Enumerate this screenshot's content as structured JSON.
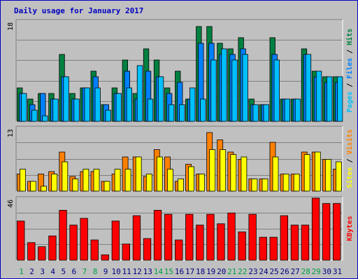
{
  "chart_data": {
    "type": "bar",
    "title": "Daily usage for January 2017",
    "categories": [
      "1",
      "2",
      "3",
      "4",
      "5",
      "6",
      "7",
      "8",
      "9",
      "10",
      "11",
      "12",
      "13",
      "14",
      "15",
      "16",
      "17",
      "18",
      "19",
      "20",
      "21",
      "22",
      "23",
      "24",
      "25",
      "26",
      "27",
      "28",
      "29",
      "30",
      "31"
    ],
    "weekend_days": [
      "1",
      "7",
      "8",
      "14",
      "15",
      "21",
      "22",
      "28",
      "29"
    ],
    "panels": [
      {
        "id": "top",
        "ymax_label": "18",
        "ymax": 18,
        "series": [
          {
            "name": "Hits",
            "color": "#008040",
            "values": [
              6,
              4,
              5,
              5,
              12,
              5,
              6,
              9,
              3,
              6,
              11,
              5,
              13,
              11,
              6,
              9,
              4,
              17,
              17,
              14,
              13,
              15,
              4,
              3,
              15,
              4,
              4,
              13,
              9,
              8,
              8
            ]
          },
          {
            "name": "Files",
            "color": "#0080FF",
            "values": [
              5,
              3,
              5,
              4,
              8,
              4,
              6,
              8,
              3,
              5,
              9,
              4,
              9,
              8,
              5,
              7,
              4,
              14,
              14,
              12,
              12,
              13,
              3,
              3,
              12,
              4,
              4,
              12,
              8,
              7,
              7
            ]
          },
          {
            "name": "Pages",
            "color": "#00C0FF",
            "values": [
              5,
              2,
              1,
              4,
              8,
              4,
              6,
              6,
              2,
              5,
              6,
              10,
              4,
              8,
              3,
              3,
              6,
              4,
              11,
              13,
              11,
              12,
              3,
              3,
              11,
              4,
              4,
              12,
              9,
              8,
              8
            ]
          }
        ]
      },
      {
        "id": "middle",
        "ymax_label": "13",
        "ymax": 13,
        "series": [
          {
            "name": "Visits",
            "color": "#FF8000",
            "values": [
              3.5,
              2,
              3.5,
              4,
              8,
              3,
              4,
              4,
              2,
              3.5,
              7,
              7,
              3,
              8.5,
              7,
              2,
              5.5,
              3.5,
              12,
              10.5,
              8,
              6.5,
              2.5,
              2.5,
              10,
              3.5,
              3.5,
              8,
              8,
              6.5,
              4.5
            ]
          },
          {
            "name": "Sites",
            "color": "#FFFF00",
            "values": [
              4.5,
              2,
              1,
              3.5,
              6,
              2.5,
              4.5,
              4.5,
              2,
              4.5,
              4.5,
              7,
              3.5,
              7,
              4.5,
              2.5,
              5,
              3.5,
              8.5,
              8.5,
              7.5,
              7,
              2.5,
              2.5,
              7,
              3.5,
              3.5,
              7.5,
              8,
              6.5,
              6
            ]
          }
        ]
      },
      {
        "id": "bottom",
        "ymax_label": "46",
        "ymax": 46,
        "series": [
          {
            "name": "KBytes",
            "color": "#FF0000",
            "values": [
              29,
              13,
              10,
              18,
              37,
              26,
              31,
              15,
              4,
              29,
              12,
              33,
              16,
              37,
              34,
              15,
              34,
              26,
              34,
              27,
              35,
              21,
              34,
              17,
              17,
              33,
              26,
              26,
              46,
              42,
              42
            ]
          }
        ]
      }
    ],
    "right_labels": {
      "top": [
        {
          "text": "Pages",
          "color": "#00C0FF"
        },
        {
          "text": " / ",
          "color": "#000000"
        },
        {
          "text": "Files",
          "color": "#0080FF"
        },
        {
          "text": " / ",
          "color": "#000000"
        },
        {
          "text": "Hits",
          "color": "#008040"
        }
      ],
      "middle": [
        {
          "text": "Sites",
          "color": "#FFFF00"
        },
        {
          "text": " / ",
          "color": "#000000"
        },
        {
          "text": "Visits",
          "color": "#FF8000"
        }
      ],
      "bottom": [
        {
          "text": "KBytes",
          "color": "#FF0000"
        }
      ]
    },
    "day_label_colors": {
      "weekday": "#000080",
      "weekend": "#00A040"
    },
    "background": "#C0C0C0",
    "border": "#0000C0"
  }
}
